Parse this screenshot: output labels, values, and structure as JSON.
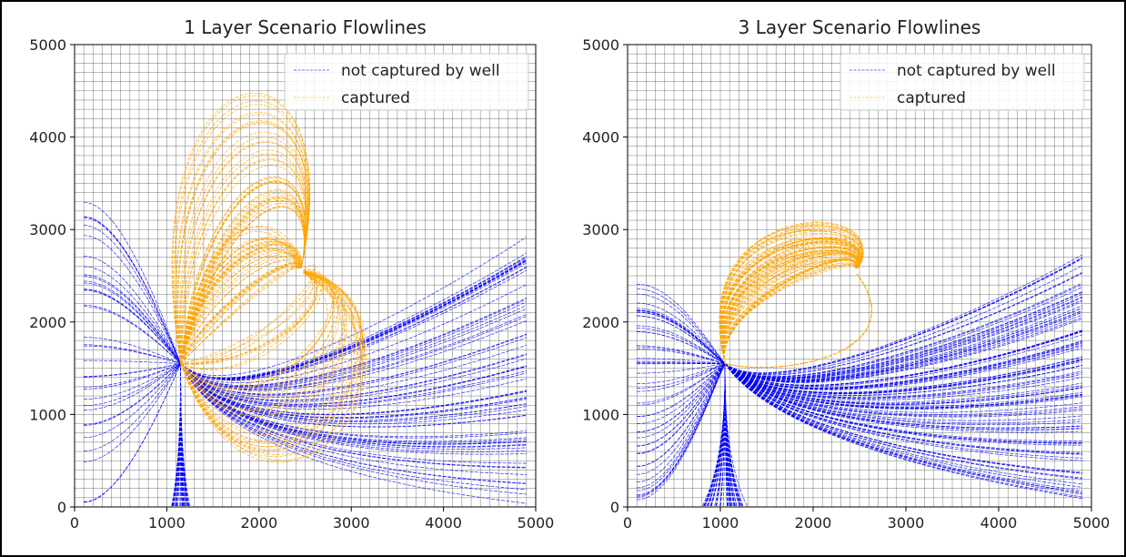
{
  "chart_data": [
    {
      "type": "line",
      "title": "1 Layer Scenario Flowlines",
      "xlabel": "",
      "ylabel": "",
      "xlim": [
        0,
        5000
      ],
      "ylim": [
        0,
        5000
      ],
      "xticks": [
        0,
        1000,
        2000,
        3000,
        4000,
        5000
      ],
      "yticks": [
        0,
        1000,
        2000,
        3000,
        4000,
        5000
      ],
      "grid": true,
      "grid_spacing": 100,
      "legend": {
        "placement": "upper-right",
        "entries": [
          "not captured by well",
          "captured"
        ]
      },
      "series": [
        {
          "name": "not captured by well",
          "color": "#0000ff",
          "style": "dashed",
          "count": 140
        },
        {
          "name": "captured",
          "color": "#ffa500",
          "style": "dashed",
          "count": 110
        }
      ],
      "well": {
        "x": 2450,
        "y": 2550
      },
      "sink": {
        "x": 1150,
        "y": 1550
      }
    },
    {
      "type": "line",
      "title": "3 Layer Scenario Flowlines",
      "xlabel": "",
      "ylabel": "",
      "xlim": [
        0,
        5000
      ],
      "ylim": [
        0,
        5000
      ],
      "xticks": [
        0,
        1000,
        2000,
        3000,
        4000,
        5000
      ],
      "yticks": [
        0,
        1000,
        2000,
        3000,
        4000,
        5000
      ],
      "grid": true,
      "grid_spacing": 100,
      "legend": {
        "placement": "upper-right",
        "entries": [
          "not captured by well",
          "captured"
        ]
      },
      "series": [
        {
          "name": "not captured by well",
          "color": "#0000ff",
          "style": "dashed",
          "count": 200
        },
        {
          "name": "captured",
          "color": "#ffa500",
          "style": "dashed",
          "count": 150
        }
      ],
      "well": {
        "x": 2450,
        "y": 2550
      },
      "sink": {
        "x": 1050,
        "y": 1550
      }
    }
  ]
}
